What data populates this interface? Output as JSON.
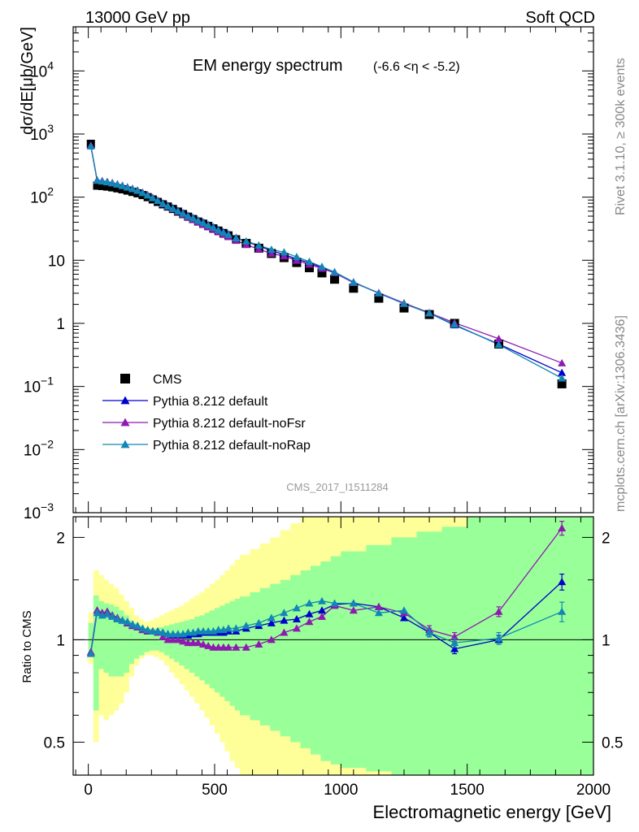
{
  "header": {
    "left": "13000 GeV pp",
    "right": "Soft QCD"
  },
  "side_text": {
    "rivet": "Rivet 3.1.10, ≥ 300k events",
    "mcplots": "mcplots.cern.ch [arXiv:1306.3436]"
  },
  "chart_data": [
    {
      "type": "scatter",
      "title": "EM energy spectrum",
      "title_suffix": "(-6.6 <η < -5.2)",
      "ylabel": "dσ/dE[μb/GeV]",
      "yscale": "log",
      "ylim": [
        0.001,
        50000
      ],
      "xlim": [
        -60,
        2000
      ],
      "yticks": [
        {
          "v": 0.001,
          "base": "10",
          "exp": "−3"
        },
        {
          "v": 0.01,
          "base": "10",
          "exp": "−2"
        },
        {
          "v": 0.1,
          "base": "10",
          "exp": "−1"
        },
        {
          "v": 1,
          "base": "1",
          "exp": ""
        },
        {
          "v": 10,
          "base": "10",
          "exp": ""
        },
        {
          "v": 100,
          "base": "10",
          "exp": "2"
        },
        {
          "v": 1000,
          "base": "10",
          "exp": "3"
        },
        {
          "v": 10000,
          "base": "10",
          "exp": "4"
        }
      ],
      "watermark": "CMS_2017_I1511284",
      "legend_position": "bottom-left",
      "x": [
        10,
        35,
        55,
        75,
        95,
        115,
        135,
        155,
        175,
        195,
        215,
        235,
        255,
        275,
        295,
        315,
        335,
        355,
        375,
        395,
        415,
        435,
        455,
        475,
        495,
        515,
        535,
        555,
        585,
        625,
        675,
        725,
        775,
        825,
        875,
        925,
        975,
        1050,
        1150,
        1250,
        1350,
        1450,
        1625,
        1875
      ],
      "series": [
        {
          "name": "CMS",
          "marker": "square",
          "color": "#000000",
          "values": [
            700,
            152,
            150,
            147,
            143,
            138,
            133,
            127,
            121,
            115,
            108,
            100,
            92,
            84,
            77,
            71,
            65,
            59,
            54,
            49,
            45,
            41,
            38,
            35,
            32,
            29.5,
            27,
            24.8,
            21.5,
            18.5,
            15.5,
            12.8,
            11,
            9.2,
            7.6,
            6.3,
            5.0,
            3.6,
            2.5,
            1.75,
            1.38,
            1.0,
            0.47,
            0.11
          ]
        },
        {
          "name": "Pythia 8.212 default",
          "marker": "triangle",
          "color": "#0000cc",
          "values": [
            660,
            185,
            180,
            175,
            168,
            160,
            152,
            144,
            136,
            128,
            118,
            108,
            98,
            89,
            80,
            73,
            67,
            61,
            56,
            51,
            47,
            43,
            40,
            36.5,
            33.5,
            30.5,
            28,
            26,
            22.8,
            19.8,
            16.8,
            14.2,
            12.3,
            10.5,
            9.1,
            7.7,
            6.5,
            4.5,
            3.0,
            2.05,
            1.45,
            0.94,
            0.47,
            0.165
          ]
        },
        {
          "name": "Pythia 8.212 default-noFsr",
          "marker": "triangle",
          "color": "#8e1ab0",
          "values": [
            660,
            185,
            180,
            175,
            168,
            160,
            152,
            144,
            136,
            128,
            118,
            108,
            98,
            88,
            78,
            71,
            65,
            59,
            53.5,
            48,
            44,
            40,
            36.5,
            33.5,
            30.5,
            28,
            25.5,
            23.5,
            20.5,
            17.6,
            15,
            12.8,
            11.6,
            9.9,
            8.6,
            7.4,
            6.3,
            4.4,
            3.05,
            2.1,
            1.47,
            1.02,
            0.57,
            0.235
          ]
        },
        {
          "name": "Pythia 8.212 default-noRap",
          "marker": "triangle",
          "color": "#1287b5",
          "values": [
            640,
            183,
            178,
            173,
            167,
            159,
            151,
            143,
            135,
            127,
            117,
            107,
            97,
            88,
            79,
            72,
            66,
            60,
            55,
            50,
            46.5,
            42.5,
            39,
            36,
            33,
            30,
            27.5,
            25.5,
            22.5,
            20,
            17.3,
            14.8,
            13.4,
            11.3,
            9.5,
            7.9,
            6.5,
            4.45,
            3.0,
            2.05,
            1.45,
            0.96,
            0.46,
            0.135
          ]
        }
      ]
    },
    {
      "type": "scatter",
      "ylabel": "Ratio to CMS",
      "xlabel": "Electromagnetic energy [GeV]",
      "ylim": [
        0.4,
        2.3
      ],
      "yscale": "log",
      "xlim": [
        -60,
        2000
      ],
      "xticks": [
        0,
        500,
        1000,
        1500,
        2000
      ],
      "yticks": [
        {
          "v": 0.5,
          "label": "0.5"
        },
        {
          "v": 1,
          "label": "1"
        },
        {
          "v": 2,
          "label": "2"
        }
      ],
      "band_edges": [
        0,
        20,
        40,
        60,
        80,
        100,
        120,
        140,
        160,
        180,
        200,
        220,
        240,
        260,
        280,
        300,
        320,
        340,
        360,
        380,
        400,
        420,
        440,
        460,
        480,
        500,
        520,
        540,
        560,
        580,
        600,
        640,
        680,
        720,
        760,
        800,
        840,
        880,
        920,
        960,
        1000,
        1100,
        1200,
        1300,
        1400,
        1500,
        1600,
        1700,
        1800,
        1900,
        2000
      ],
      "green_band": {
        "lo": [
          0.92,
          0.62,
          0.82,
          0.8,
          0.78,
          0.78,
          0.78,
          0.8,
          0.85,
          0.88,
          0.9,
          0.92,
          0.93,
          0.93,
          0.92,
          0.9,
          0.88,
          0.86,
          0.84,
          0.82,
          0.8,
          0.78,
          0.76,
          0.74,
          0.72,
          0.7,
          0.68,
          0.66,
          0.64,
          0.62,
          0.6,
          0.58,
          0.56,
          0.54,
          0.52,
          0.5,
          0.48,
          0.46,
          0.44,
          0.43,
          0.42,
          0.41,
          0.4,
          0.4,
          0.4,
          0.4,
          0.4,
          0.4,
          0.4,
          0.4
        ],
        "hi": [
          1.12,
          1.35,
          1.3,
          1.28,
          1.27,
          1.25,
          1.22,
          1.18,
          1.14,
          1.12,
          1.1,
          1.08,
          1.08,
          1.08,
          1.09,
          1.1,
          1.11,
          1.12,
          1.13,
          1.14,
          1.15,
          1.17,
          1.18,
          1.2,
          1.22,
          1.24,
          1.26,
          1.28,
          1.3,
          1.32,
          1.34,
          1.38,
          1.42,
          1.46,
          1.5,
          1.55,
          1.6,
          1.65,
          1.7,
          1.76,
          1.82,
          1.9,
          2.0,
          2.08,
          2.15,
          2.3,
          2.3,
          2.3,
          2.3,
          2.3
        ]
      },
      "yellow_band": {
        "lo": [
          0.85,
          0.5,
          0.6,
          0.58,
          0.6,
          0.62,
          0.65,
          0.7,
          0.78,
          0.84,
          0.88,
          0.9,
          0.9,
          0.89,
          0.87,
          0.84,
          0.8,
          0.77,
          0.74,
          0.71,
          0.68,
          0.65,
          0.62,
          0.59,
          0.56,
          0.53,
          0.5,
          0.47,
          0.44,
          0.42,
          0.4,
          0.4,
          0.4,
          0.4,
          0.4,
          0.4,
          0.4,
          0.4,
          0.4,
          0.4,
          0.4,
          0.4,
          0.4,
          0.4,
          0.4,
          0.4,
          0.4,
          0.4,
          0.4,
          0.4
        ],
        "hi": [
          1.2,
          1.6,
          1.55,
          1.5,
          1.46,
          1.42,
          1.36,
          1.3,
          1.24,
          1.18,
          1.15,
          1.13,
          1.14,
          1.16,
          1.18,
          1.2,
          1.22,
          1.24,
          1.26,
          1.29,
          1.32,
          1.35,
          1.38,
          1.42,
          1.46,
          1.5,
          1.55,
          1.6,
          1.66,
          1.72,
          1.78,
          1.85,
          1.92,
          2.0,
          2.1,
          2.2,
          2.3,
          2.3,
          2.3,
          2.3,
          2.3,
          2.3,
          2.3,
          2.3,
          2.3,
          2.3,
          2.3,
          2.3,
          2.3,
          2.3
        ]
      },
      "reference_line": 1,
      "series": [
        {
          "name": "Pythia 8.212 default",
          "color": "#0000cc",
          "values": [
            0.92,
            1.22,
            1.2,
            1.21,
            1.18,
            1.16,
            1.14,
            1.12,
            1.1,
            1.09,
            1.07,
            1.06,
            1.06,
            1.06,
            1.05,
            1.04,
            1.03,
            1.03,
            1.03,
            1.03,
            1.04,
            1.04,
            1.05,
            1.05,
            1.05,
            1.05,
            1.05,
            1.06,
            1.06,
            1.08,
            1.1,
            1.12,
            1.14,
            1.15,
            1.19,
            1.22,
            1.27,
            1.28,
            1.25,
            1.16,
            1.05,
            0.94,
            1.0,
            1.48
          ],
          "err": [
            0.02,
            0.02,
            0.02,
            0.02,
            0.02,
            0.02,
            0.02,
            0.02,
            0.02,
            0.02,
            0.02,
            0.02,
            0.02,
            0.02,
            0.02,
            0.02,
            0.02,
            0.02,
            0.02,
            0.02,
            0.02,
            0.02,
            0.02,
            0.02,
            0.02,
            0.02,
            0.02,
            0.02,
            0.02,
            0.02,
            0.02,
            0.02,
            0.02,
            0.02,
            0.02,
            0.02,
            0.02,
            0.02,
            0.02,
            0.02,
            0.03,
            0.03,
            0.03,
            0.08
          ]
        },
        {
          "name": "Pythia 8.212 default-noFsr",
          "color": "#8e1ab0",
          "values": [
            0.92,
            1.22,
            1.2,
            1.21,
            1.18,
            1.16,
            1.14,
            1.12,
            1.1,
            1.09,
            1.07,
            1.06,
            1.06,
            1.05,
            1.02,
            1.0,
            1.0,
            1.0,
            0.99,
            0.98,
            0.98,
            0.98,
            0.97,
            0.96,
            0.95,
            0.95,
            0.95,
            0.95,
            0.95,
            0.95,
            0.97,
            1.0,
            1.05,
            1.08,
            1.13,
            1.17,
            1.26,
            1.22,
            1.25,
            1.2,
            1.07,
            1.02,
            1.21,
            2.13
          ],
          "err": [
            0.02,
            0.02,
            0.02,
            0.02,
            0.02,
            0.02,
            0.02,
            0.02,
            0.02,
            0.02,
            0.02,
            0.02,
            0.02,
            0.02,
            0.02,
            0.02,
            0.02,
            0.02,
            0.02,
            0.02,
            0.02,
            0.02,
            0.02,
            0.02,
            0.02,
            0.02,
            0.02,
            0.02,
            0.02,
            0.02,
            0.02,
            0.02,
            0.02,
            0.02,
            0.02,
            0.02,
            0.02,
            0.02,
            0.02,
            0.02,
            0.03,
            0.03,
            0.04,
            0.1
          ]
        },
        {
          "name": "Pythia 8.212 default-noRap",
          "color": "#1287b5",
          "values": [
            0.91,
            1.2,
            1.18,
            1.19,
            1.17,
            1.15,
            1.14,
            1.13,
            1.11,
            1.1,
            1.08,
            1.07,
            1.06,
            1.06,
            1.05,
            1.04,
            1.04,
            1.04,
            1.04,
            1.05,
            1.05,
            1.06,
            1.06,
            1.06,
            1.06,
            1.07,
            1.07,
            1.08,
            1.08,
            1.1,
            1.12,
            1.16,
            1.2,
            1.24,
            1.28,
            1.3,
            1.28,
            1.28,
            1.2,
            1.22,
            1.05,
            0.98,
            1.01,
            1.21
          ],
          "err": [
            0.02,
            0.02,
            0.02,
            0.02,
            0.02,
            0.02,
            0.02,
            0.02,
            0.02,
            0.02,
            0.02,
            0.02,
            0.02,
            0.02,
            0.02,
            0.02,
            0.02,
            0.02,
            0.02,
            0.02,
            0.02,
            0.02,
            0.02,
            0.02,
            0.02,
            0.02,
            0.02,
            0.02,
            0.02,
            0.02,
            0.02,
            0.02,
            0.02,
            0.02,
            0.02,
            0.02,
            0.02,
            0.02,
            0.02,
            0.02,
            0.03,
            0.03,
            0.04,
            0.08
          ]
        }
      ]
    }
  ]
}
